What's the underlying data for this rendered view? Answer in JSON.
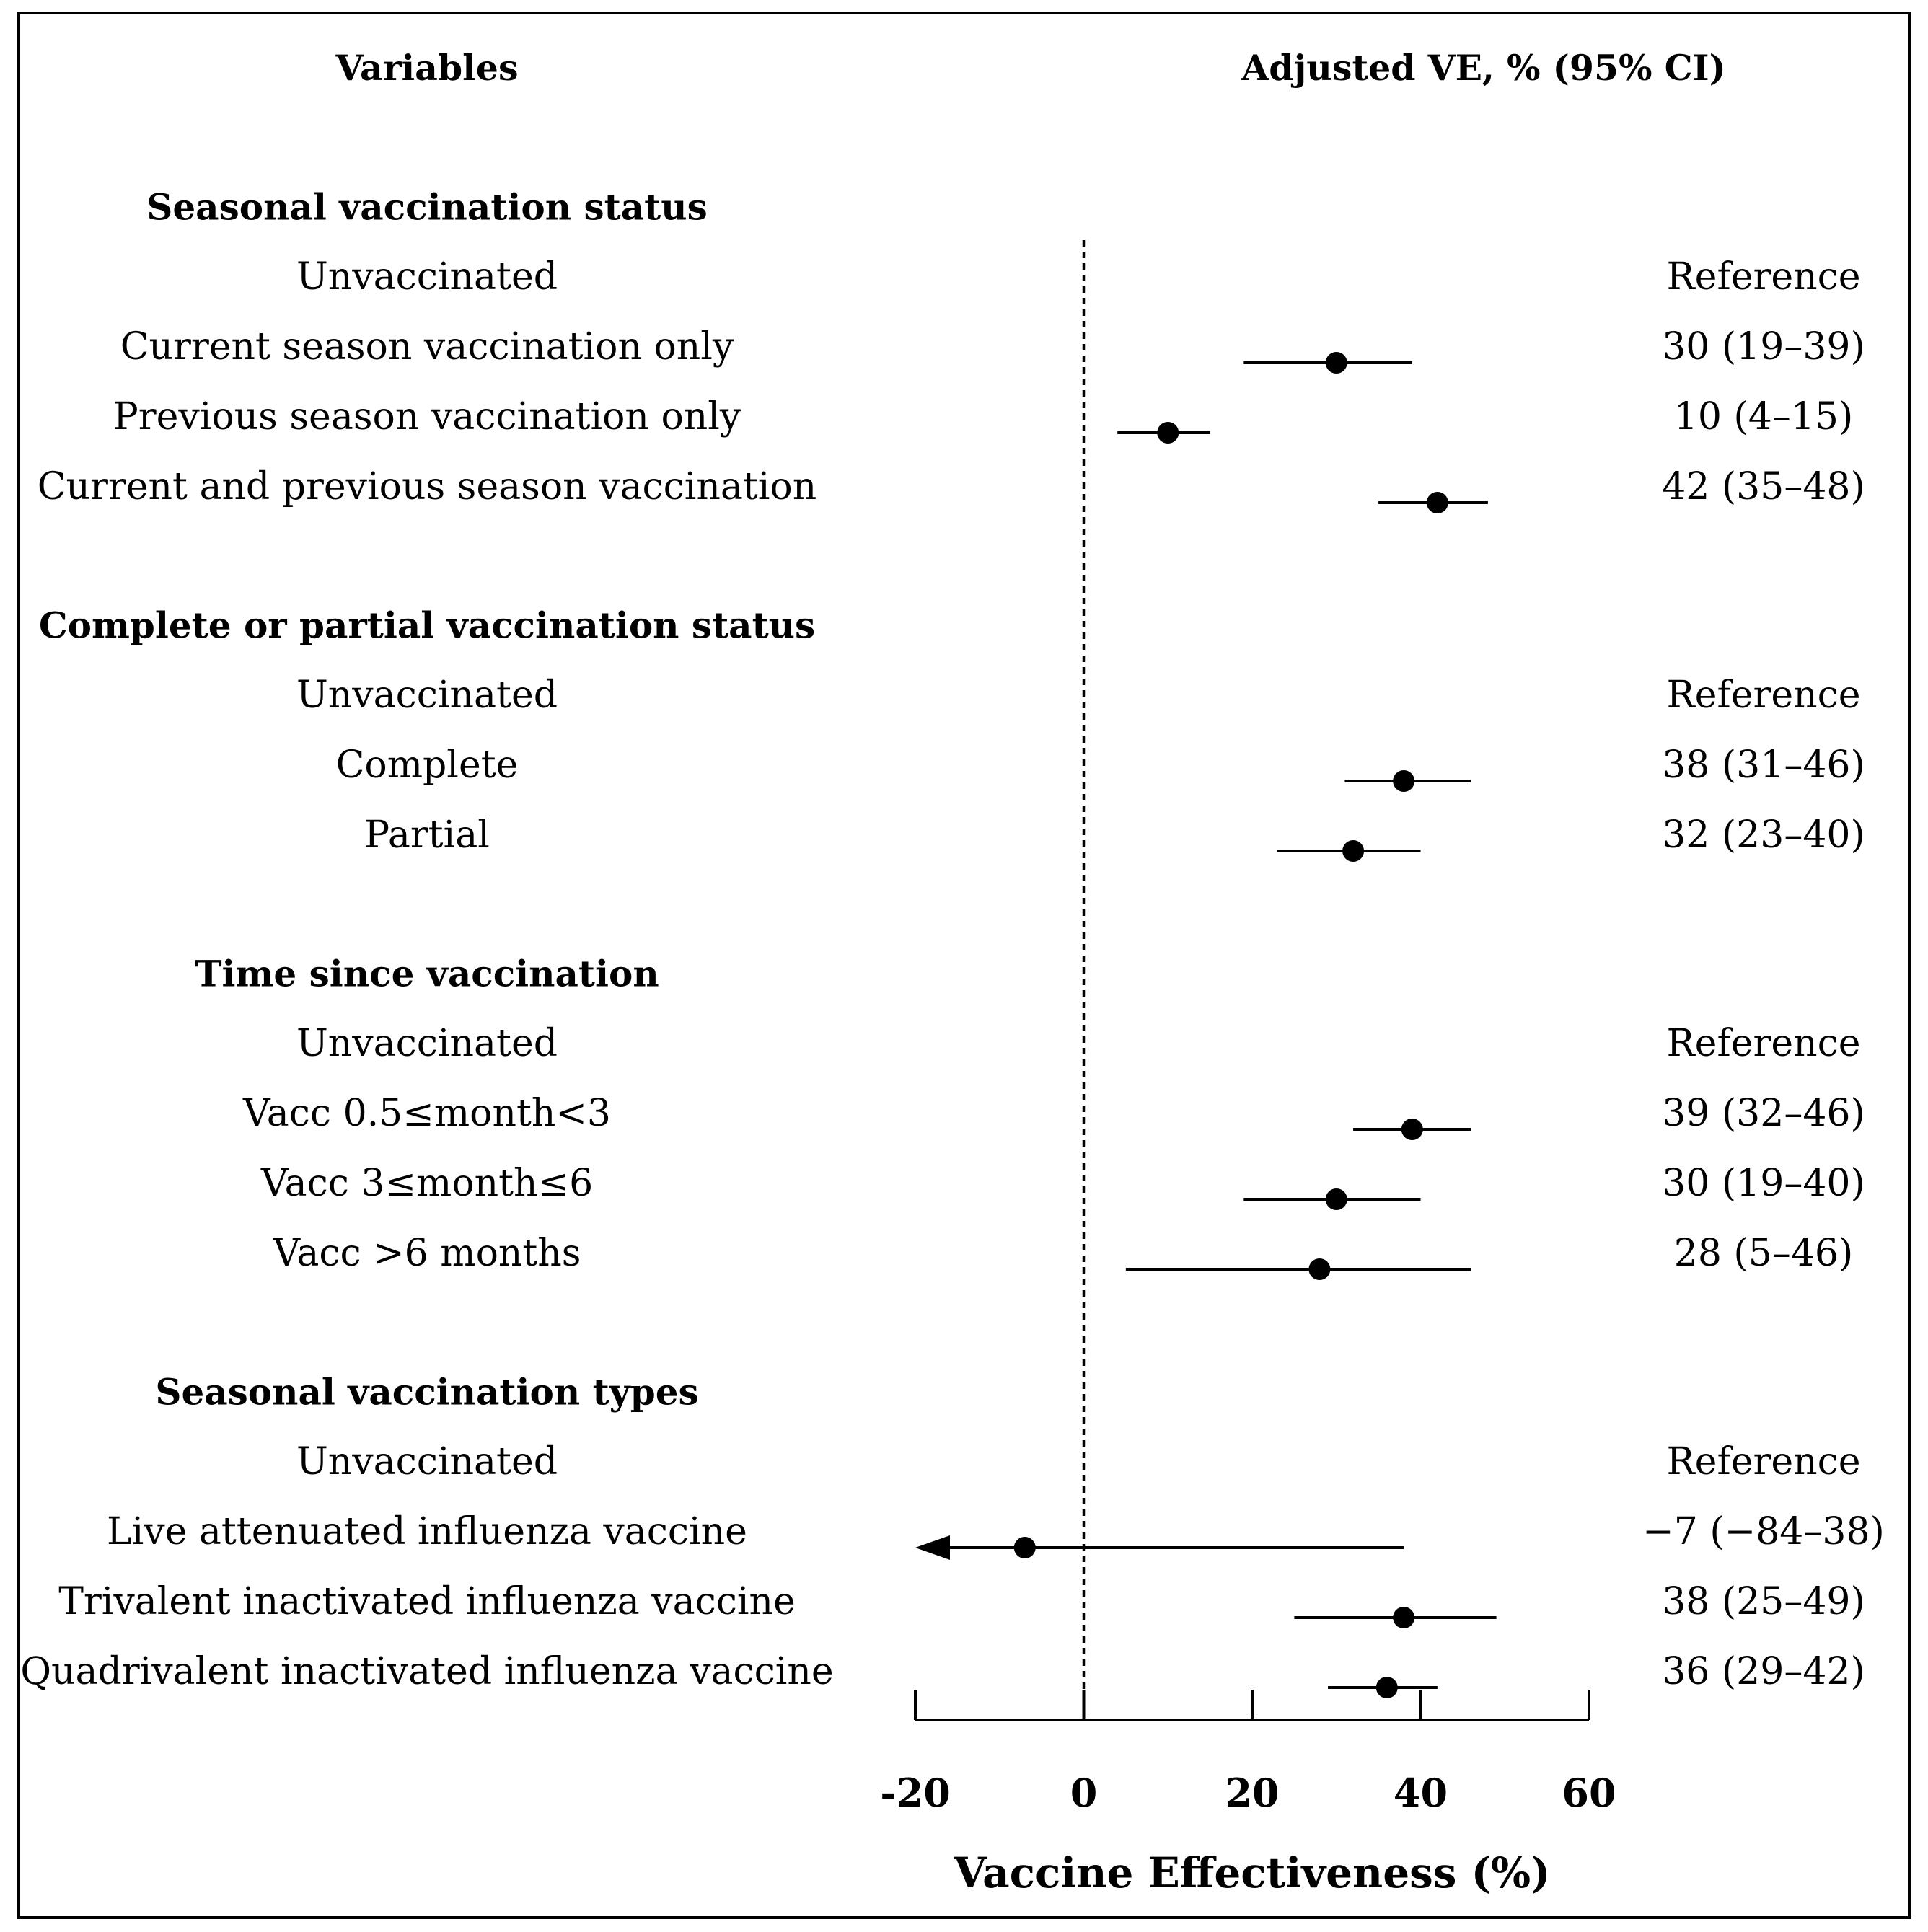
{
  "chart_data": {
    "type": "forest",
    "header_variables": "Variables",
    "header_ve": "Adjusted VE, % (95% CI)",
    "xlabel": "Vaccine Effectiveness (%)",
    "xlim": [
      -20,
      60
    ],
    "xticks": [
      -20,
      0,
      20,
      40,
      60
    ],
    "xtick_labels": [
      "-20",
      "0",
      "20",
      "40",
      "60"
    ],
    "reference_line": 0,
    "groups": [
      {
        "title": "Seasonal vaccination status",
        "rows": [
          {
            "label": "Unvaccinated",
            "value_text": "Reference",
            "ve": null,
            "lo": null,
            "hi": null
          },
          {
            "label": "Current season vaccination only",
            "value_text": "30 (19–39)",
            "ve": 30,
            "lo": 19,
            "hi": 39
          },
          {
            "label": "Previous season vaccination only",
            "value_text": "10 (4–15)",
            "ve": 10,
            "lo": 4,
            "hi": 15
          },
          {
            "label": "Current and previous season vaccination",
            "value_text": "42 (35–48)",
            "ve": 42,
            "lo": 35,
            "hi": 48
          }
        ]
      },
      {
        "title": "Complete or partial vaccination status",
        "rows": [
          {
            "label": "Unvaccinated",
            "value_text": "Reference",
            "ve": null,
            "lo": null,
            "hi": null
          },
          {
            "label": "Complete",
            "value_text": "38 (31–46)",
            "ve": 38,
            "lo": 31,
            "hi": 46
          },
          {
            "label": "Partial",
            "value_text": "32 (23–40)",
            "ve": 32,
            "lo": 23,
            "hi": 40
          }
        ]
      },
      {
        "title": "Time since vaccination",
        "rows": [
          {
            "label": "Unvaccinated",
            "value_text": "Reference",
            "ve": null,
            "lo": null,
            "hi": null
          },
          {
            "label": "Vacc 0.5≤month<3",
            "value_text": "39 (32–46)",
            "ve": 39,
            "lo": 32,
            "hi": 46
          },
          {
            "label": "Vacc 3≤month≤6",
            "value_text": "30 (19–40)",
            "ve": 30,
            "lo": 19,
            "hi": 40
          },
          {
            "label": "Vacc >6 months",
            "value_text": "28 (5–46)",
            "ve": 28,
            "lo": 5,
            "hi": 46
          }
        ]
      },
      {
        "title": "Seasonal vaccination types",
        "rows": [
          {
            "label": "Unvaccinated",
            "value_text": "Reference",
            "ve": null,
            "lo": null,
            "hi": null
          },
          {
            "label": "Live attenuated influenza vaccine",
            "value_text": "−7 (−84–38)",
            "ve": -7,
            "lo": -84,
            "hi": 38
          },
          {
            "label": "Trivalent inactivated influenza vaccine",
            "value_text": "38 (25–49)",
            "ve": 38,
            "lo": 25,
            "hi": 49
          },
          {
            "label": "Quadrivalent inactivated influenza vaccine",
            "value_text": "36 (29–42)",
            "ve": 36,
            "lo": 29,
            "hi": 42
          }
        ]
      }
    ]
  }
}
